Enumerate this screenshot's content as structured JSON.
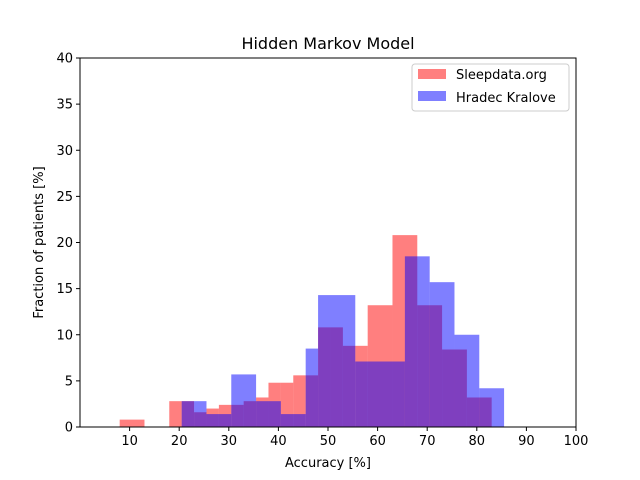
{
  "chart_data": {
    "type": "bar",
    "title": "Hidden Markov Model",
    "xlabel": "Accuracy [%]",
    "ylabel": "Fraction of patients [%]",
    "xlim": [
      0,
      100
    ],
    "ylim": [
      0,
      40
    ],
    "xticks": [
      10,
      20,
      30,
      40,
      50,
      60,
      70,
      80,
      90,
      100
    ],
    "yticks": [
      0,
      5,
      10,
      15,
      20,
      25,
      30,
      35,
      40
    ],
    "legend_position": "top-right",
    "grid": false,
    "series": [
      {
        "name": "Sleepdata.org",
        "color": "#ff0000",
        "opacity": 0.5,
        "bins": [
          {
            "x0": 8,
            "x1": 13,
            "value": 0.8
          },
          {
            "x0": 18,
            "x1": 20.5,
            "value": 2.8
          },
          {
            "x0": 20.5,
            "x1": 23,
            "value": 2.8
          },
          {
            "x0": 23,
            "x1": 25.5,
            "value": 1.6
          },
          {
            "x0": 25.5,
            "x1": 28,
            "value": 2.0
          },
          {
            "x0": 28,
            "x1": 30.5,
            "value": 2.4
          },
          {
            "x0": 30.5,
            "x1": 33,
            "value": 2.4
          },
          {
            "x0": 33,
            "x1": 35.5,
            "value": 2.8
          },
          {
            "x0": 35.5,
            "x1": 38,
            "value": 3.2
          },
          {
            "x0": 38,
            "x1": 40.5,
            "value": 4.8
          },
          {
            "x0": 40.5,
            "x1": 43,
            "value": 4.8
          },
          {
            "x0": 43,
            "x1": 45.5,
            "value": 5.6
          },
          {
            "x0": 45.5,
            "x1": 48,
            "value": 5.6
          },
          {
            "x0": 48,
            "x1": 50.5,
            "value": 10.8
          },
          {
            "x0": 50.5,
            "x1": 53,
            "value": 10.8
          },
          {
            "x0": 53,
            "x1": 55.5,
            "value": 8.8
          },
          {
            "x0": 55.5,
            "x1": 58,
            "value": 8.8
          },
          {
            "x0": 58,
            "x1": 63,
            "value": 13.2
          },
          {
            "x0": 63,
            "x1": 68,
            "value": 20.8
          },
          {
            "x0": 68,
            "x1": 73,
            "value": 13.2
          },
          {
            "x0": 73,
            "x1": 78,
            "value": 8.4
          },
          {
            "x0": 78,
            "x1": 83,
            "value": 3.2
          }
        ]
      },
      {
        "name": "Hradec Kralove",
        "color": "#0000ff",
        "opacity": 0.5,
        "bins": [
          {
            "x0": 20.5,
            "x1": 23,
            "value": 2.8
          },
          {
            "x0": 23,
            "x1": 25.5,
            "value": 2.8
          },
          {
            "x0": 25.5,
            "x1": 30.5,
            "value": 1.4
          },
          {
            "x0": 30.5,
            "x1": 35.5,
            "value": 5.7
          },
          {
            "x0": 35.5,
            "x1": 40.5,
            "value": 2.8
          },
          {
            "x0": 40.5,
            "x1": 45.5,
            "value": 1.4
          },
          {
            "x0": 45.5,
            "x1": 48,
            "value": 8.5
          },
          {
            "x0": 48,
            "x1": 55.5,
            "value": 14.3
          },
          {
            "x0": 55.5,
            "x1": 65.5,
            "value": 7.1
          },
          {
            "x0": 65.5,
            "x1": 70.5,
            "value": 18.5
          },
          {
            "x0": 70.5,
            "x1": 75.5,
            "value": 15.7
          },
          {
            "x0": 75.5,
            "x1": 80.5,
            "value": 10.0
          },
          {
            "x0": 80.5,
            "x1": 85.5,
            "value": 4.2
          }
        ]
      }
    ]
  }
}
